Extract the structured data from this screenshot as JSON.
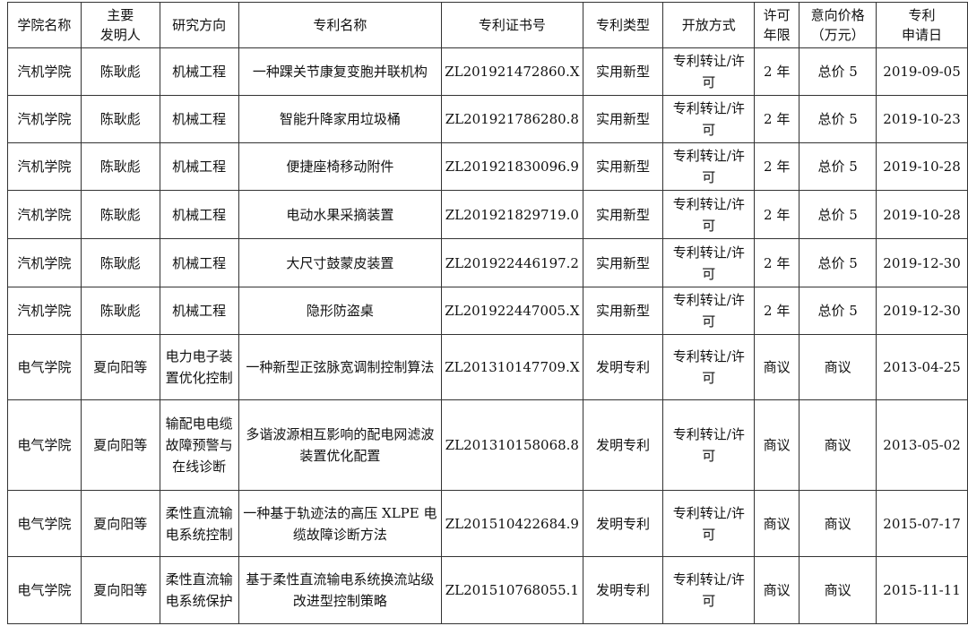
{
  "headers": [
    "学院名称",
    "主要\n发明人",
    "研究方向",
    "专利名称",
    "专利证书号",
    "专利类型",
    "开放方式",
    "许可\n年限",
    "意向价格\n（万元）",
    "专利\n申请日"
  ],
  "rows": [
    [
      "汽机学院",
      "陈耿彪",
      "机械工程",
      "一种踝关节康复变胞并联机构",
      "ZL201921472860.X",
      "实用新型",
      "专利转让/许可",
      "2 年",
      "总价 5",
      "2019-09-05"
    ],
    [
      "汽机学院",
      "陈耿彪",
      "机械工程",
      "智能升降家用垃圾桶",
      "ZL201921786280.8",
      "实用新型",
      "专利转让/许可",
      "2 年",
      "总价 5",
      "2019-10-23"
    ],
    [
      "汽机学院",
      "陈耿彪",
      "机械工程",
      "便捷座椅移动附件",
      "ZL201921830096.9",
      "实用新型",
      "专利转让/许可",
      "2 年",
      "总价 5",
      "2019-10-28"
    ],
    [
      "汽机学院",
      "陈耿彪",
      "机械工程",
      "电动水果采摘装置",
      "ZL201921829719.0",
      "实用新型",
      "专利转让/许可",
      "2 年",
      "总价 5",
      "2019-10-28"
    ],
    [
      "汽机学院",
      "陈耿彪",
      "机械工程",
      "大尺寸鼓蒙皮装置",
      "ZL201922446197.2",
      "实用新型",
      "专利转让/许可",
      "2 年",
      "总价 5",
      "2019-12-30"
    ],
    [
      "汽机学院",
      "陈耿彪",
      "机械工程",
      "隐形防盗桌",
      "ZL201922447005.X",
      "实用新型",
      "专利转让/许可",
      "2 年",
      "总价 5",
      "2019-12-30"
    ],
    [
      "电气学院",
      "夏向阳等",
      "电力电子装置优化控制",
      "一种新型正弦脉宽调制控制算法",
      "ZL201310147709.X",
      "发明专利",
      "专利转让/许可",
      "商议",
      "商议",
      "2013-04-25"
    ],
    [
      "电气学院",
      "夏向阳等",
      "输配电电缆故障预警与在线诊断",
      "多谐波源相互影响的配电网滤波装置优化配置",
      "ZL201310158068.8",
      "发明专利",
      "专利转让/许可",
      "商议",
      "商议",
      "2013-05-02"
    ],
    [
      "电气学院",
      "夏向阳等",
      "柔性直流输电系统控制",
      "一种基于轨迹法的高压 XLPE 电缆故障诊断方法",
      "ZL201510422684.9",
      "发明专利",
      "专利转让/许可",
      "商议",
      "商议",
      "2015-07-17"
    ],
    [
      "电气学院",
      "夏向阳等",
      "柔性直流输电系统保护",
      "基于柔性直流输电系统换流站级改进型控制策略",
      "ZL201510768055.1",
      "发明专利",
      "专利转让/许可",
      "商议",
      "商议",
      "2015-11-11"
    ]
  ]
}
